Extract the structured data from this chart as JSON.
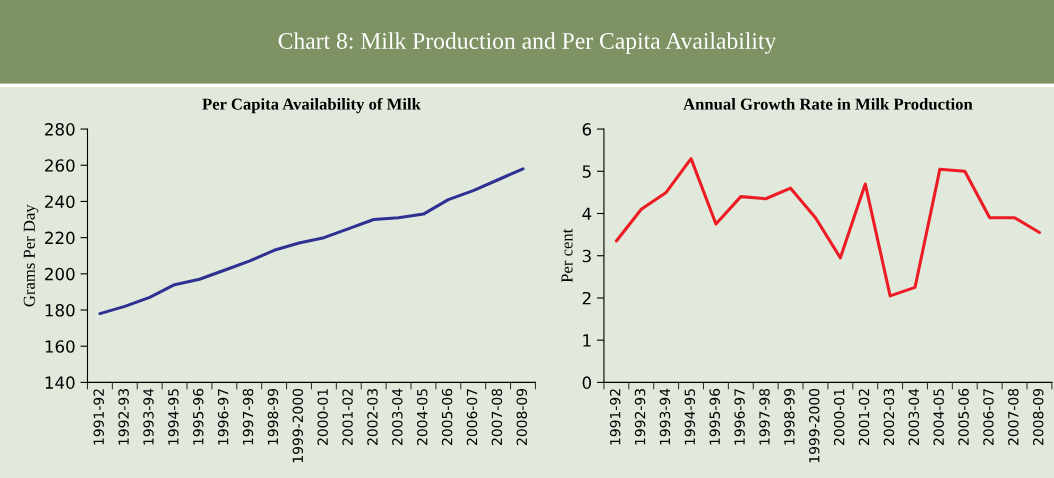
{
  "chart_data": [
    {
      "type": "line",
      "title": "Per Capita Availability of Milk",
      "ylabel": "Grams Per Day",
      "annotations": [
        "Chart 8: Milk Production and Per Capita Availability"
      ],
      "categories": [
        "1991-92",
        "1992-93",
        "1993-94",
        "1994-95",
        "1995-96",
        "1996-97",
        "1997-98",
        "1998-99",
        "1999-2000",
        "2000-01",
        "2001-02",
        "2002-03",
        "2003-04",
        "2004-05",
        "2005-06",
        "2006-07",
        "2007-08",
        "2008-09"
      ],
      "series": [
        {
          "color": "#2e3192",
          "values": [
            178,
            182,
            187,
            194,
            197,
            202,
            207,
            213,
            217,
            220,
            225,
            230,
            231,
            233,
            241,
            246,
            252,
            258
          ]
        }
      ],
      "ylim": [
        140,
        280
      ],
      "yticks": [
        140,
        160,
        180,
        200,
        220,
        240,
        260,
        280
      ],
      "grid": false
    },
    {
      "type": "line",
      "title": "Annual Growth Rate in Milk Production",
      "ylabel": "Per cent",
      "categories": [
        "1991-92",
        "1992-93",
        "1993-94",
        "1994-95",
        "1995-96",
        "1996-97",
        "1997-98",
        "1998-99",
        "1999-2000",
        "2000-01",
        "2001-02",
        "2002-03",
        "2003-04",
        "2004-05",
        "2005-06",
        "2006-07",
        "2007-08",
        "2008-09"
      ],
      "series": [
        {
          "color": "#ed1c24",
          "values": [
            3.35,
            4.1,
            4.5,
            5.3,
            3.75,
            4.4,
            4.35,
            4.6,
            3.9,
            2.95,
            4.7,
            2.05,
            2.25,
            5.05,
            5.0,
            3.9,
            3.9,
            3.55
          ]
        }
      ],
      "ylim": [
        0,
        6
      ],
      "yticks": [
        0,
        1,
        2,
        3,
        4,
        5,
        6
      ],
      "grid": false
    }
  ]
}
